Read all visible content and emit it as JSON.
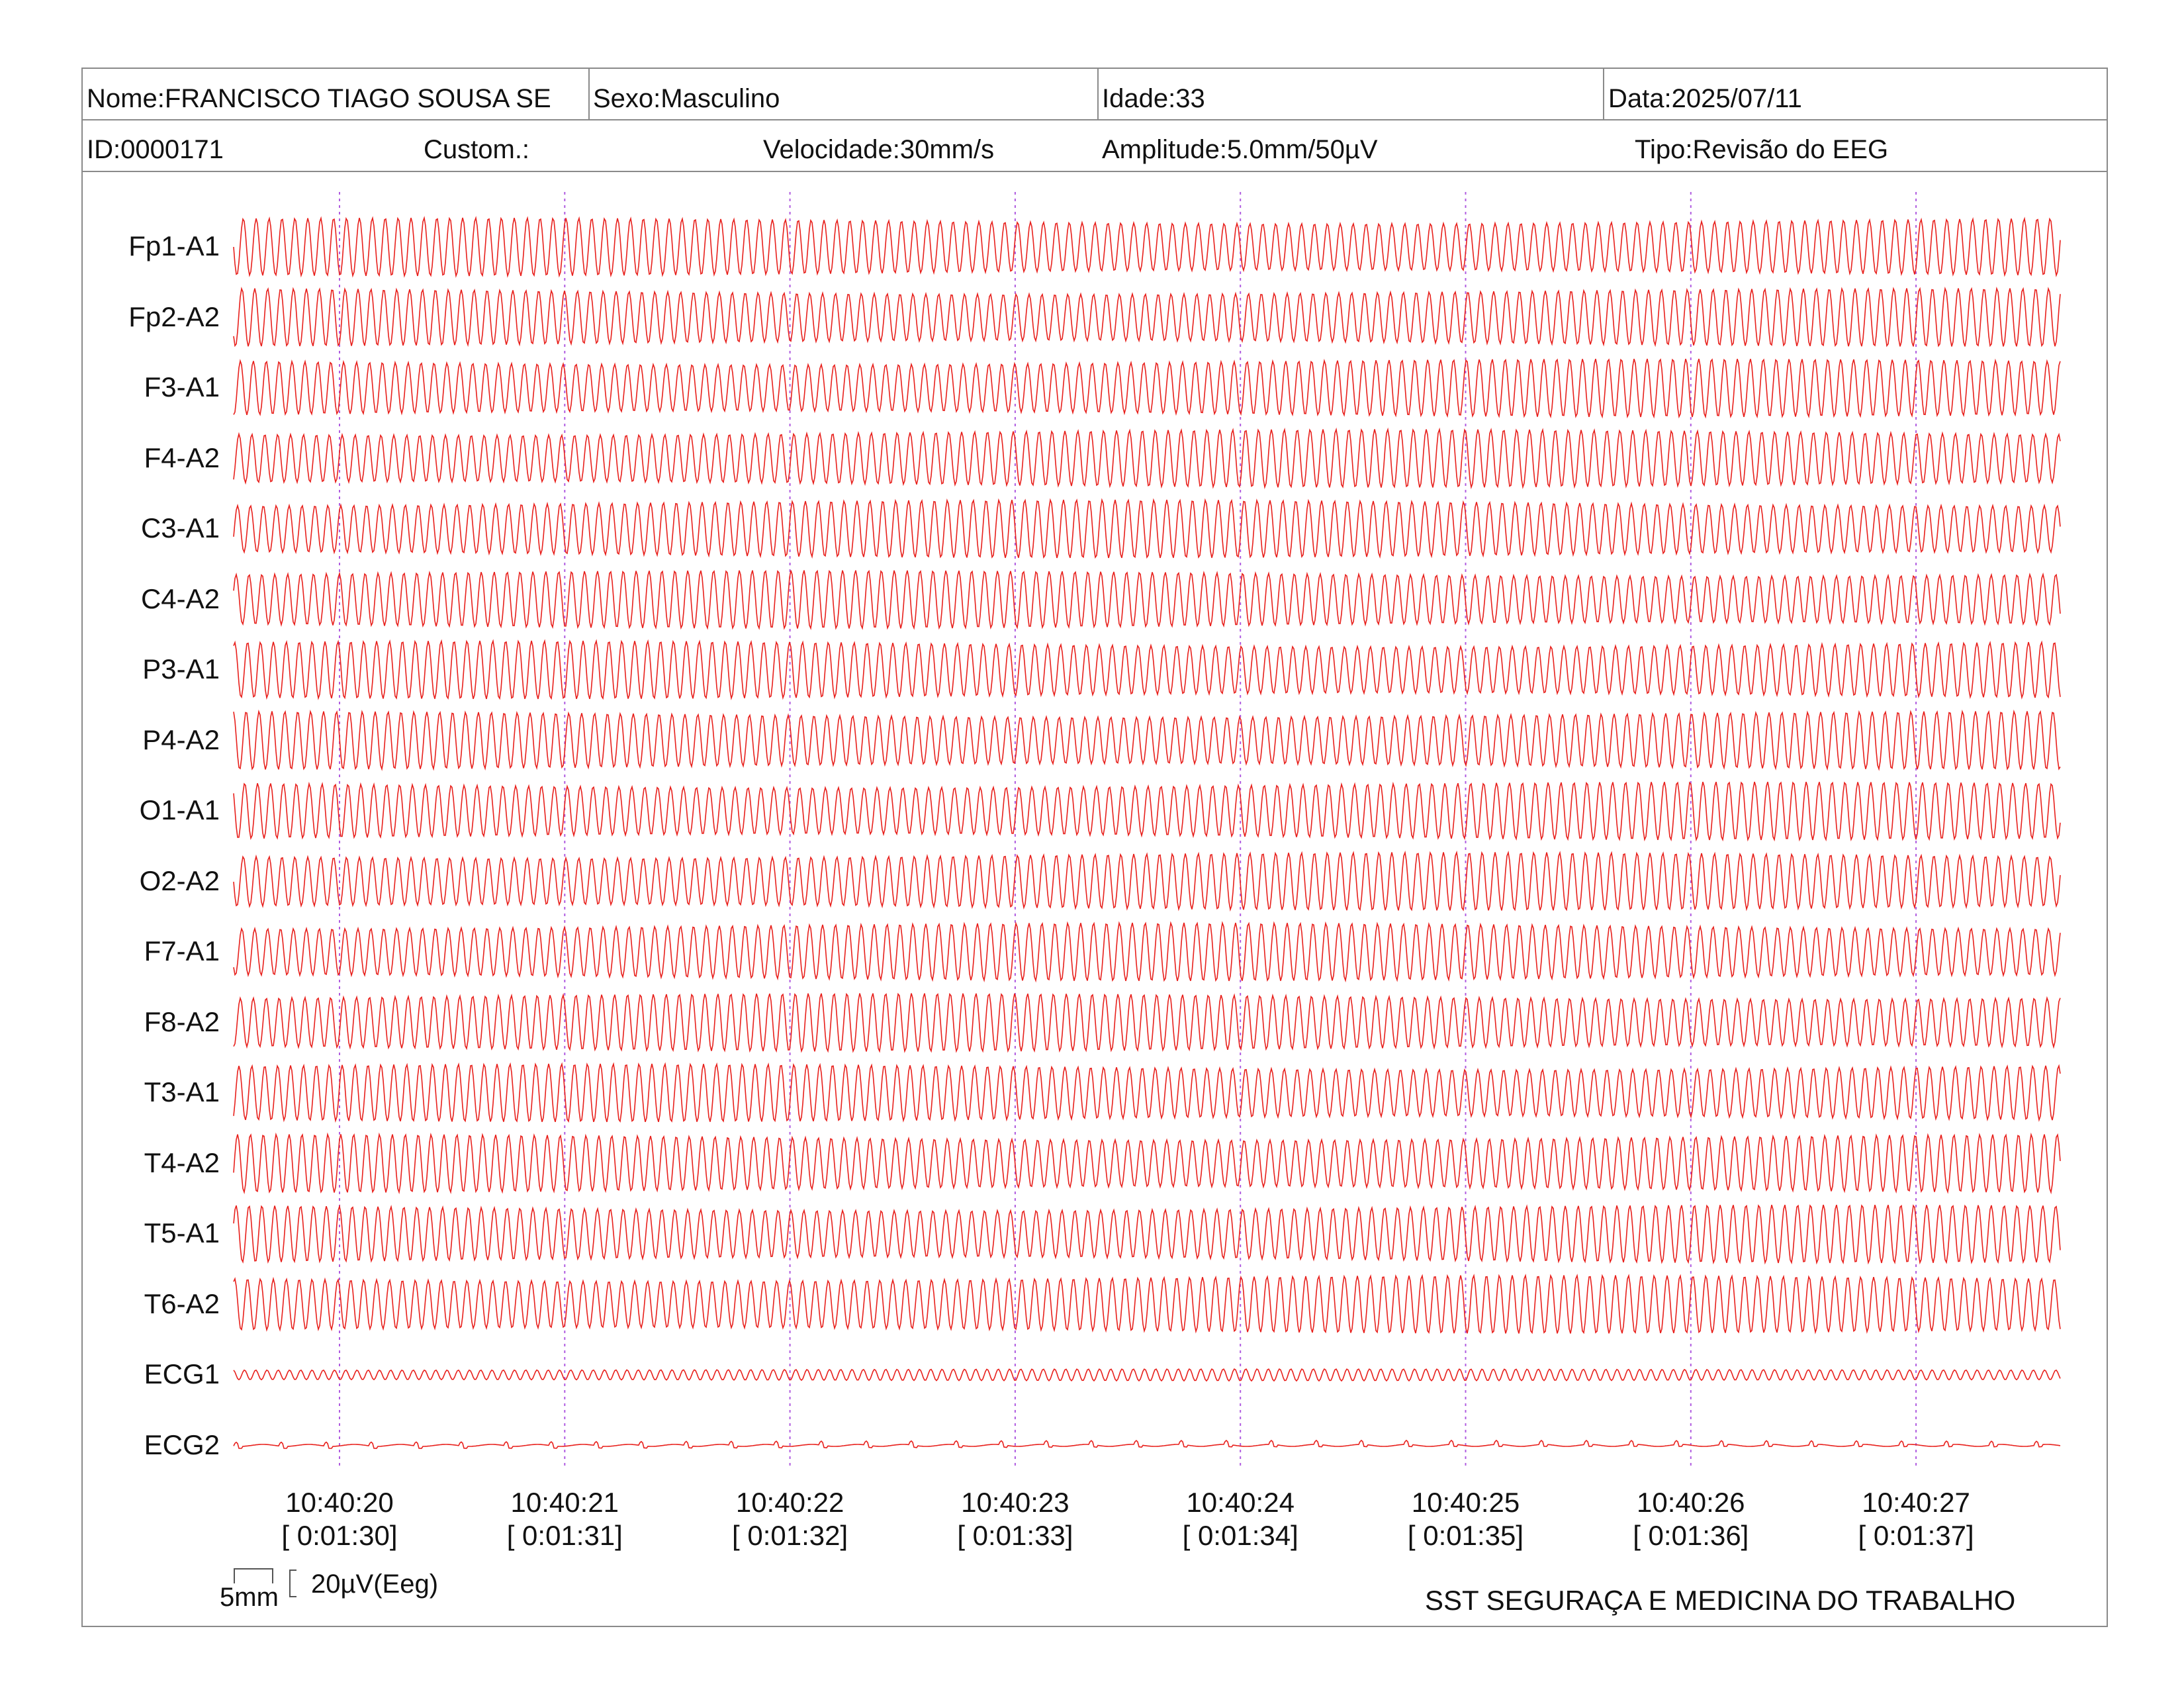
{
  "header": {
    "nome": "Nome:FRANCISCO TIAGO SOUSA SE",
    "sexo": "Sexo:Masculino",
    "idade": "Idade:33",
    "data": "Data:2025/07/11",
    "id": "ID:0000171",
    "custom": "Custom.:",
    "velocidade": "Velocidade:30mm/s",
    "amplitude": "Amplitude:5.0mm/50µV",
    "tipo": "Tipo:Revisão do EEG"
  },
  "channels": [
    "Fp1-A1",
    "Fp2-A2",
    "F3-A1",
    "F4-A2",
    "C3-A1",
    "C4-A2",
    "P3-A1",
    "P4-A2",
    "O1-A1",
    "O2-A2",
    "F7-A1",
    "F8-A2",
    "T3-A1",
    "T4-A2",
    "T5-A1",
    "T6-A2",
    "ECG1",
    "ECG2"
  ],
  "time_marks": [
    {
      "clock": "10:40:20",
      "elapsed": "[ 0:01:30]"
    },
    {
      "clock": "10:40:21",
      "elapsed": "[ 0:01:31]"
    },
    {
      "clock": "10:40:22",
      "elapsed": "[ 0:01:32]"
    },
    {
      "clock": "10:40:23",
      "elapsed": "[ 0:01:33]"
    },
    {
      "clock": "10:40:24",
      "elapsed": "[ 0:01:34]"
    },
    {
      "clock": "10:40:25",
      "elapsed": "[ 0:01:35]"
    },
    {
      "clock": "10:40:26",
      "elapsed": "[ 0:01:36]"
    },
    {
      "clock": "10:40:27",
      "elapsed": "[ 0:01:37]"
    }
  ],
  "scale": {
    "time": "5mm",
    "amplitude": "20µV(Eeg)"
  },
  "footer": {
    "company": "SST SEGURAÇA E MEDICINA DO TRABALHO"
  },
  "colors": {
    "trace": "#e8201c",
    "time_marker": "#b05ce0",
    "grid": "#8a8a8a"
  }
}
